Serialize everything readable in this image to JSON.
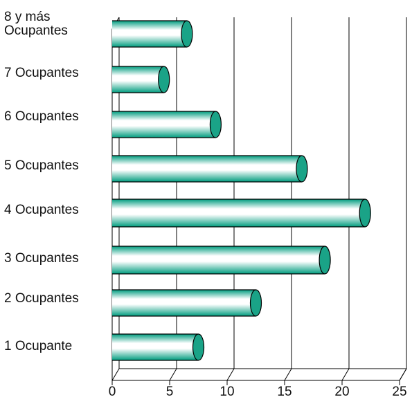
{
  "chart_data": {
    "type": "bar",
    "orientation": "horizontal",
    "style": "3d-cylinder",
    "categories": [
      "1 Ocupante",
      "2 Ocupantes",
      "3 Ocupantes",
      "4 Ocupantes",
      "5 Ocupantes",
      "6 Ocupantes",
      "7 Ocupantes",
      "8 y más Ocupantes"
    ],
    "category_label_lines": [
      [
        "1 Ocupante"
      ],
      [
        "2 Ocupantes"
      ],
      [
        "3 Ocupantes"
      ],
      [
        "4 Ocupantes"
      ],
      [
        "5 Ocupantes"
      ],
      [
        "6 Ocupantes"
      ],
      [
        "7 Ocupantes"
      ],
      [
        "8 y más",
        "Ocupantes"
      ]
    ],
    "values": [
      7.5,
      12.5,
      18.5,
      22,
      16.5,
      9,
      4.5,
      6.5
    ],
    "xlim": [
      0,
      25
    ],
    "xticks": [
      "0",
      "5",
      "10",
      "15",
      "20",
      "25"
    ],
    "grid": true,
    "title": "",
    "xlabel": "",
    "ylabel": "",
    "colors": {
      "bar_light": "#ffffff",
      "bar_dark": "#009c7e",
      "cap": "#1aa387",
      "grid": "#000000"
    }
  }
}
